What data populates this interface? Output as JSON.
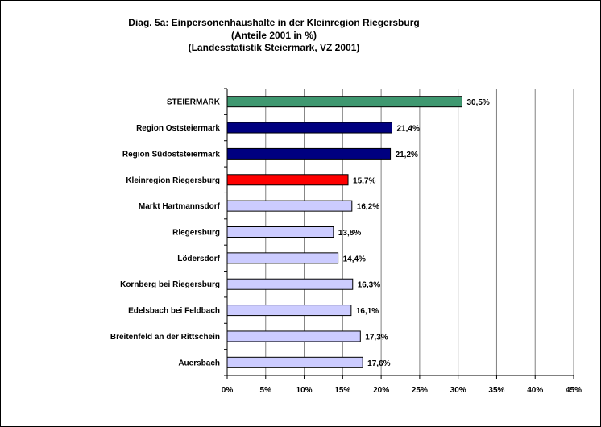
{
  "chart_data": {
    "type": "bar",
    "orientation": "horizontal",
    "title": "Diag. 5a: Einpersonenhaushalte  in der Kleinregion Riegersburg",
    "subtitle": "(Anteile 2001 in %)",
    "source": "(Landesstatistik  Steiermark,  VZ 2001)",
    "categories": [
      "STEIERMARK",
      "Region Oststeiermark",
      "Region Südoststeiermark",
      "Kleinregion Riegersburg",
      "Markt Hartmannsdorf",
      "Riegersburg",
      "Lödersdorf",
      "Kornberg bei Riegersburg",
      "Edelsbach bei Feldbach",
      "Breitenfeld an der Rittschein",
      "Auersbach"
    ],
    "values": [
      30.5,
      21.4,
      21.2,
      15.7,
      16.2,
      13.8,
      14.4,
      16.3,
      16.1,
      17.3,
      17.6
    ],
    "value_labels": [
      "30,5%",
      "21,4%",
      "21,2%",
      "15,7%",
      "16,2%",
      "13,8%",
      "14,4%",
      "16,3%",
      "16,1%",
      "17,3%",
      "17,6%"
    ],
    "bar_colors": [
      "#3f9870",
      "#000080",
      "#000080",
      "#ff0000",
      "#ccccff",
      "#ccccff",
      "#ccccff",
      "#ccccff",
      "#ccccff",
      "#ccccff",
      "#ccccff"
    ],
    "xlim": [
      0,
      45
    ],
    "x_ticks": [
      0,
      5,
      10,
      15,
      20,
      25,
      30,
      35,
      40,
      45
    ],
    "x_tick_labels": [
      "0%",
      "5%",
      "10%",
      "15%",
      "20%",
      "25%",
      "30%",
      "35%",
      "40%",
      "45%"
    ],
    "grid": "vertical",
    "legend": "none"
  }
}
